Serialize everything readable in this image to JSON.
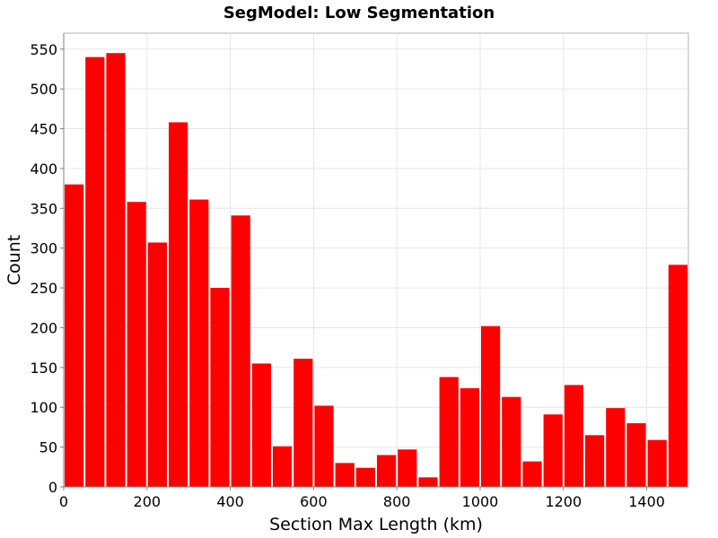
{
  "chart_data": {
    "type": "bar",
    "title": "SegModel: Low Segmentation",
    "xlabel": "Section Max Length (km)",
    "ylabel": "Count",
    "xlim": [
      0,
      1500
    ],
    "ylim": [
      0,
      570
    ],
    "bin_width": 50,
    "bin_starts": [
      0,
      50,
      100,
      150,
      200,
      250,
      300,
      350,
      400,
      450,
      500,
      550,
      600,
      650,
      700,
      750,
      800,
      850,
      900,
      950,
      1000,
      1050,
      1100,
      1150,
      1200,
      1250,
      1300,
      1350,
      1400,
      1450
    ],
    "values": [
      380,
      540,
      545,
      358,
      307,
      458,
      361,
      250,
      341,
      155,
      51,
      161,
      102,
      30,
      24,
      40,
      47,
      12,
      138,
      124,
      202,
      113,
      32,
      91,
      128,
      65,
      99,
      80,
      59,
      279
    ],
    "x_ticks": [
      "0",
      "200",
      "400",
      "600",
      "800",
      "1000",
      "1200",
      "1400"
    ],
    "x_tick_values": [
      0,
      200,
      400,
      600,
      800,
      1000,
      1200,
      1400
    ],
    "y_ticks": [
      "0",
      "50",
      "100",
      "150",
      "200",
      "250",
      "300",
      "350",
      "400",
      "450",
      "500",
      "550"
    ],
    "y_tick_values": [
      0,
      50,
      100,
      150,
      200,
      250,
      300,
      350,
      400,
      450,
      500,
      550
    ],
    "bar_color": "#ff0000",
    "grid": true,
    "legend": "none"
  }
}
